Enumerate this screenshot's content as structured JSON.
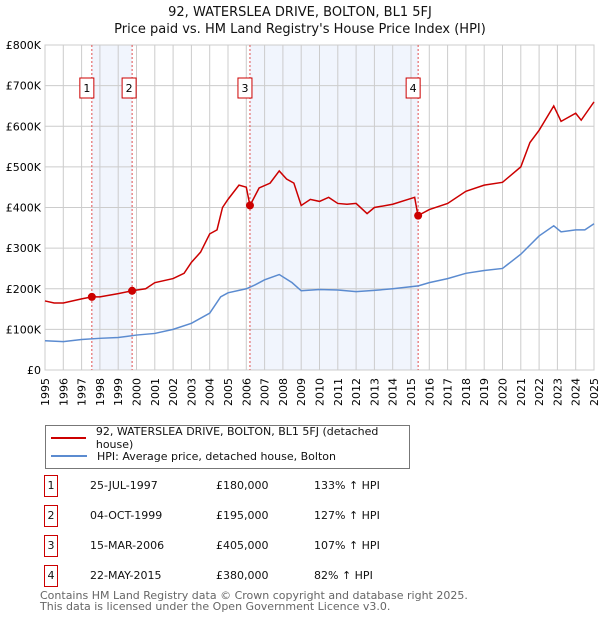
{
  "title_line1": "92, WATERSLEA DRIVE, BOLTON, BL1 5FJ",
  "title_line2": "Price paid vs. HM Land Registry's House Price Index (HPI)",
  "chart_data": {
    "type": "line",
    "title": "92, WATERSLEA DRIVE, BOLTON, BL1 5FJ — Price paid vs. HM Land Registry's House Price Index (HPI)",
    "xlim": [
      1995,
      2025
    ],
    "ylim": [
      0,
      800000
    ],
    "x_ticks": [
      "1995",
      "1996",
      "1997",
      "1998",
      "1999",
      "2000",
      "2001",
      "2002",
      "2003",
      "2004",
      "2005",
      "2006",
      "2007",
      "2008",
      "2009",
      "2010",
      "2011",
      "2012",
      "2013",
      "2014",
      "2015",
      "2016",
      "2017",
      "2018",
      "2019",
      "2020",
      "2021",
      "2022",
      "2023",
      "2024",
      "2025"
    ],
    "y_ticks": [
      {
        "v": 0,
        "label": "£0"
      },
      {
        "v": 100000,
        "label": "£100K"
      },
      {
        "v": 200000,
        "label": "£200K"
      },
      {
        "v": 300000,
        "label": "£300K"
      },
      {
        "v": 400000,
        "label": "£400K"
      },
      {
        "v": 500000,
        "label": "£500K"
      },
      {
        "v": 600000,
        "label": "£600K"
      },
      {
        "v": 700000,
        "label": "£700K"
      },
      {
        "v": 800000,
        "label": "£800K"
      }
    ],
    "grid": true,
    "series": [
      {
        "name": "92, WATERSLEA DRIVE, BOLTON, BL1 5FJ (detached house)",
        "color": "#cc0000",
        "x": [
          1995,
          1995.5,
          1996,
          1997,
          1997.56,
          1998,
          1999,
          1999.75,
          2000.5,
          2001,
          2002,
          2002.6,
          2003,
          2003.5,
          2004,
          2004.4,
          2004.7,
          2005,
          2005.6,
          2006.0,
          2006.2,
          2006.7,
          2007.3,
          2007.8,
          2008.2,
          2008.6,
          2009,
          2009.5,
          2010,
          2010.5,
          2011,
          2011.5,
          2012,
          2012.6,
          2013,
          2014,
          2015.2,
          2015.38,
          2016,
          2017,
          2018,
          2019,
          2020,
          2021,
          2021.5,
          2022,
          2022.8,
          2023.2,
          2024,
          2024.3,
          2025
        ],
        "y": [
          170000,
          165000,
          165000,
          175000,
          180000,
          180000,
          188000,
          195000,
          200000,
          215000,
          225000,
          238000,
          265000,
          290000,
          335000,
          345000,
          400000,
          420000,
          455000,
          450000,
          405000,
          448000,
          460000,
          490000,
          470000,
          460000,
          405000,
          420000,
          415000,
          425000,
          410000,
          408000,
          410000,
          385000,
          400000,
          408000,
          425000,
          380000,
          395000,
          410000,
          440000,
          455000,
          462000,
          500000,
          560000,
          590000,
          650000,
          612000,
          632000,
          615000,
          660000
        ]
      },
      {
        "name": "HPI: Average price, detached house, Bolton",
        "color": "#5b8bd0",
        "x": [
          1995,
          1996,
          1997,
          1998,
          1999,
          2000,
          2001,
          2002,
          2003,
          2004,
          2004.6,
          2005,
          2006,
          2006.5,
          2007,
          2007.8,
          2008.5,
          2009,
          2010,
          2011,
          2012,
          2013,
          2014,
          2015.4,
          2016,
          2017,
          2018,
          2019,
          2020,
          2021,
          2022,
          2022.8,
          2023.2,
          2024,
          2024.5,
          2025
        ],
        "y": [
          72000,
          70000,
          75000,
          78000,
          80000,
          86000,
          90000,
          100000,
          115000,
          140000,
          180000,
          190000,
          200000,
          210000,
          222000,
          235000,
          215000,
          195000,
          198000,
          197000,
          193000,
          196000,
          200000,
          207000,
          215000,
          225000,
          238000,
          245000,
          250000,
          285000,
          330000,
          355000,
          340000,
          345000,
          345000,
          360000
        ]
      }
    ],
    "sales": [
      {
        "id": "1",
        "x": 1997.56,
        "price": 180000
      },
      {
        "id": "2",
        "x": 1999.76,
        "price": 195000
      },
      {
        "id": "3",
        "x": 2006.2,
        "price": 405000
      },
      {
        "id": "4",
        "x": 2015.39,
        "price": 380000
      }
    ],
    "shaded_ranges": [
      [
        1997.56,
        1999.76
      ],
      [
        2006.2,
        2015.39
      ]
    ]
  },
  "legend": {
    "items": [
      {
        "label": "92, WATERSLEA DRIVE, BOLTON, BL1 5FJ (detached house)",
        "color": "#cc0000"
      },
      {
        "label": "HPI: Average price, detached house, Bolton",
        "color": "#5b8bd0"
      }
    ]
  },
  "transactions": [
    {
      "num": "1",
      "date": "25-JUL-1997",
      "price": "£180,000",
      "hpi": "133% ↑ HPI"
    },
    {
      "num": "2",
      "date": "04-OCT-1999",
      "price": "£195,000",
      "hpi": "127% ↑ HPI"
    },
    {
      "num": "3",
      "date": "15-MAR-2006",
      "price": "£405,000",
      "hpi": "107% ↑ HPI"
    },
    {
      "num": "4",
      "date": "22-MAY-2015",
      "price": "£380,000",
      "hpi": "82% ↑ HPI"
    }
  ],
  "footer": {
    "line1": "Contains HM Land Registry data © Crown copyright and database right 2025.",
    "line2": "This data is licensed under the Open Government Licence v3.0."
  }
}
